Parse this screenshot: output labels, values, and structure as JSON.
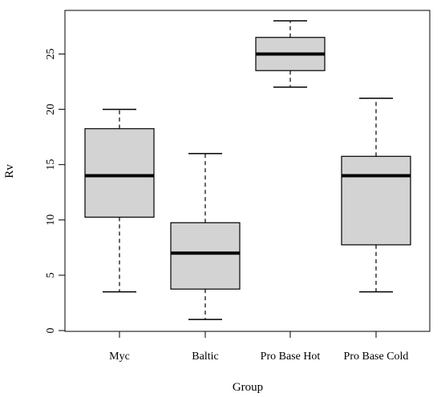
{
  "chart_data": {
    "type": "boxplot",
    "xlabel": "Group",
    "ylabel": "Rv",
    "ylim": [
      0,
      28
    ],
    "yticks": [
      0,
      5,
      10,
      15,
      20,
      25
    ],
    "categories": [
      "Myc",
      "Baltic",
      "Pro Base Hot",
      "Pro Base Cold"
    ],
    "boxes": [
      {
        "name": "Myc",
        "whisker_low": 3.5,
        "q1": 10.25,
        "median": 14,
        "q3": 18.25,
        "whisker_high": 20
      },
      {
        "name": "Baltic",
        "whisker_low": 1,
        "q1": 3.75,
        "median": 7,
        "q3": 9.75,
        "whisker_high": 16
      },
      {
        "name": "Pro Base Hot",
        "whisker_low": 22,
        "q1": 23.5,
        "median": 25,
        "q3": 26.5,
        "whisker_high": 28
      },
      {
        "name": "Pro Base Cold",
        "whisker_low": 3.5,
        "q1": 7.75,
        "median": 14,
        "q3": 15.75,
        "whisker_high": 21
      }
    ],
    "box_fill": "#d3d3d3",
    "grid": false,
    "legend": "none"
  }
}
